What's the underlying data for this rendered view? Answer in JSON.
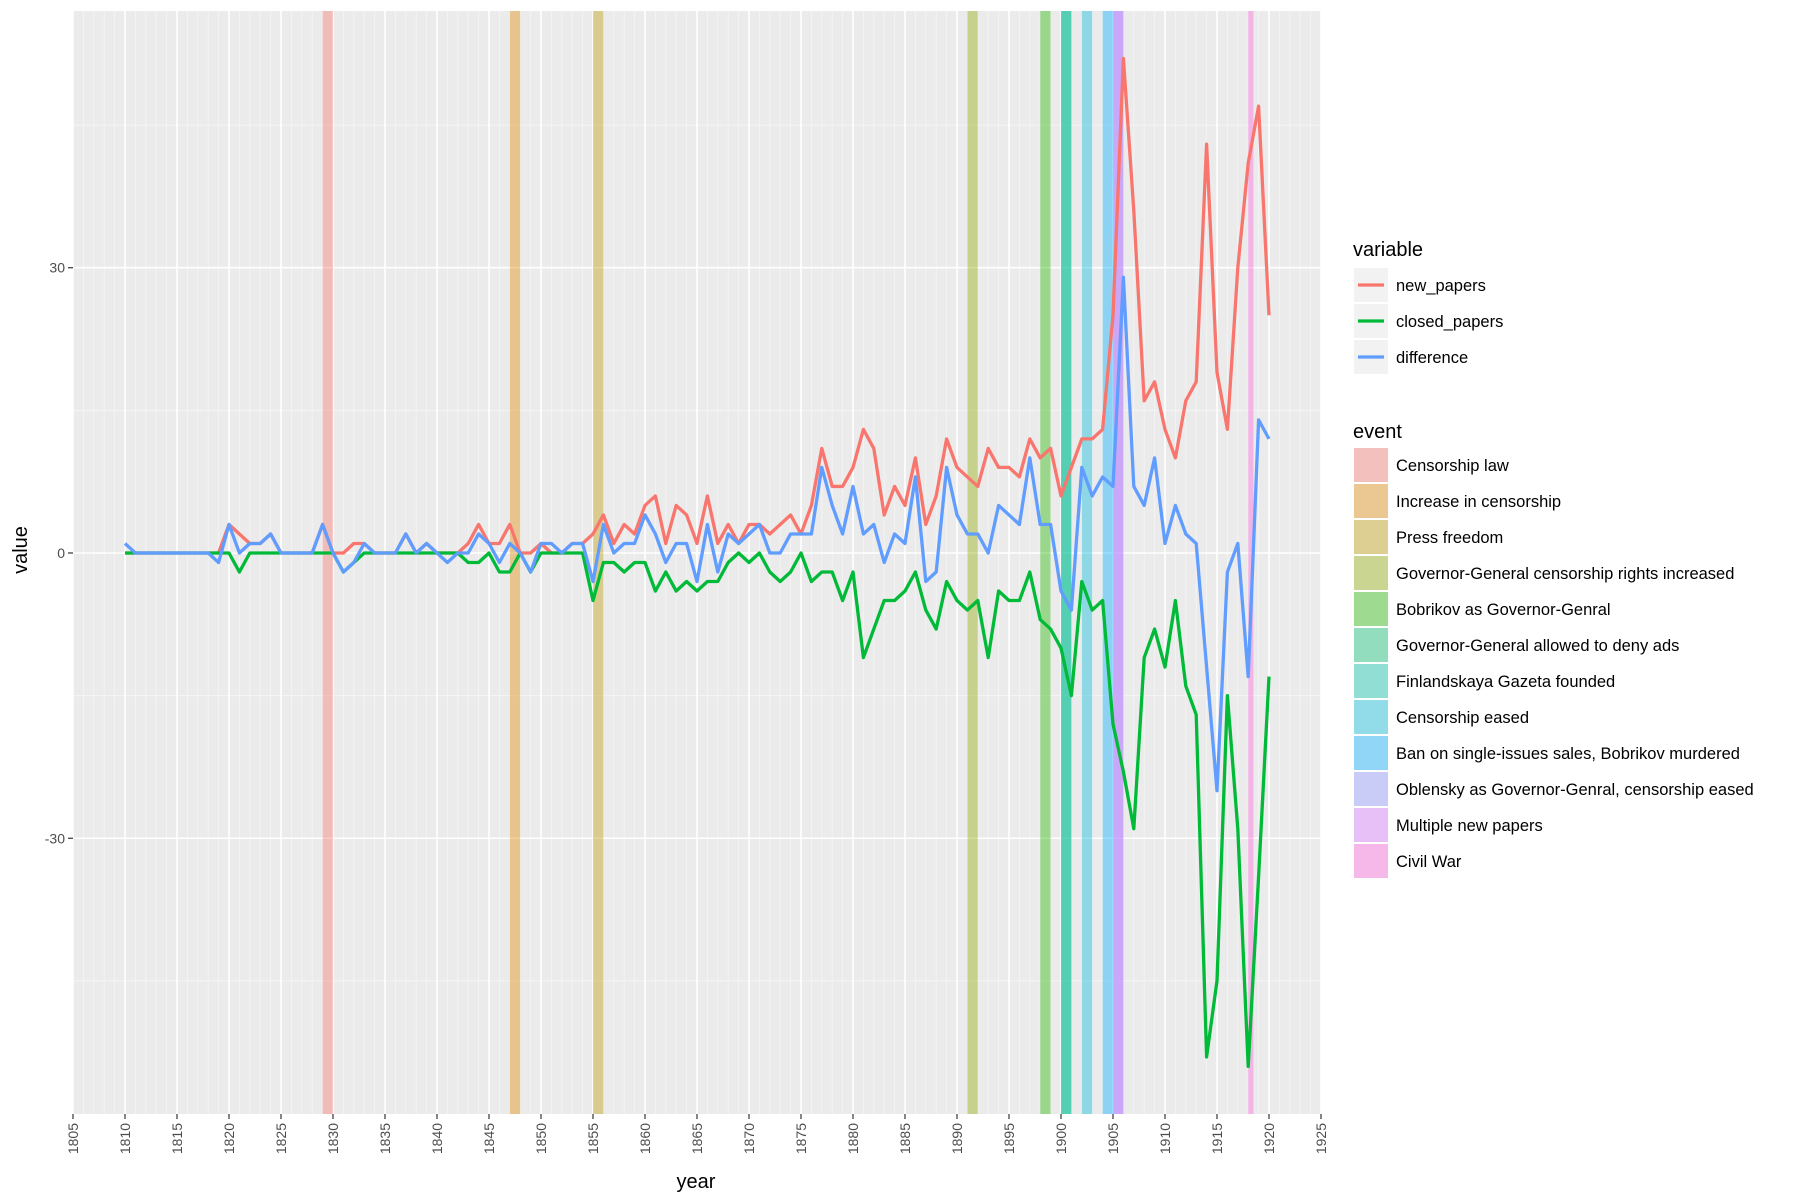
{
  "chart_data": {
    "type": "line",
    "xlabel": "year",
    "ylabel": "value",
    "xlim": [
      1805,
      1925
    ],
    "ylim": [
      -59,
      57
    ],
    "x_ticks": [
      1805,
      1810,
      1815,
      1820,
      1825,
      1830,
      1835,
      1840,
      1845,
      1850,
      1855,
      1860,
      1865,
      1870,
      1875,
      1880,
      1885,
      1890,
      1895,
      1900,
      1905,
      1910,
      1915,
      1920,
      1925
    ],
    "y_ticks": [
      30,
      0,
      -30
    ],
    "y_tick_labels": [
      "30",
      "0",
      "-30"
    ],
    "grid": true,
    "legend_position": "right",
    "x": [
      1810,
      1811,
      1812,
      1813,
      1814,
      1815,
      1816,
      1817,
      1818,
      1819,
      1820,
      1821,
      1822,
      1823,
      1824,
      1825,
      1826,
      1827,
      1828,
      1829,
      1830,
      1831,
      1832,
      1833,
      1834,
      1835,
      1836,
      1837,
      1838,
      1839,
      1840,
      1841,
      1842,
      1843,
      1844,
      1845,
      1846,
      1847,
      1848,
      1849,
      1850,
      1851,
      1852,
      1853,
      1854,
      1855,
      1856,
      1857,
      1858,
      1859,
      1860,
      1861,
      1862,
      1863,
      1864,
      1865,
      1866,
      1867,
      1868,
      1869,
      1870,
      1871,
      1872,
      1873,
      1874,
      1875,
      1876,
      1877,
      1878,
      1879,
      1880,
      1881,
      1882,
      1883,
      1884,
      1885,
      1886,
      1887,
      1888,
      1889,
      1890,
      1891,
      1892,
      1893,
      1894,
      1895,
      1896,
      1897,
      1898,
      1899,
      1900,
      1901,
      1902,
      1903,
      1904,
      1905,
      1906,
      1907,
      1908,
      1909,
      1910,
      1911,
      1912,
      1913,
      1914,
      1915,
      1916,
      1917,
      1918,
      1919,
      1920
    ],
    "variable_legend_title": "variable",
    "series": [
      {
        "name": "new_papers",
        "color": "#F8766D",
        "values": [
          0,
          0,
          0,
          0,
          0,
          0,
          0,
          0,
          0,
          0,
          3,
          2,
          1,
          1,
          2,
          0,
          0,
          0,
          0,
          3,
          0,
          0,
          1,
          1,
          0,
          0,
          0,
          2,
          0,
          1,
          0,
          0,
          0,
          1,
          3,
          1,
          1,
          3,
          0,
          0,
          1,
          0,
          0,
          1,
          1,
          2,
          4,
          1,
          3,
          2,
          5,
          6,
          1,
          5,
          4,
          1,
          6,
          1,
          3,
          1,
          3,
          3,
          2,
          3,
          4,
          2,
          5,
          11,
          7,
          7,
          9,
          13,
          11,
          4,
          7,
          5,
          10,
          3,
          6,
          12,
          9,
          8,
          7,
          11,
          9,
          9,
          8,
          12,
          10,
          11,
          6,
          9,
          12,
          12,
          13,
          25,
          52,
          36,
          16,
          18,
          13,
          10,
          16,
          18,
          43,
          19,
          13,
          30,
          41,
          47,
          25
        ]
      },
      {
        "name": "closed_papers",
        "color": "#00BA38",
        "values": [
          0,
          0,
          0,
          0,
          0,
          0,
          0,
          0,
          0,
          0,
          0,
          -2,
          0,
          0,
          0,
          0,
          0,
          0,
          0,
          0,
          0,
          -2,
          -1,
          0,
          0,
          0,
          0,
          0,
          0,
          0,
          0,
          0,
          0,
          -1,
          -1,
          0,
          -2,
          -2,
          0,
          -2,
          0,
          0,
          0,
          0,
          0,
          -5,
          -1,
          -1,
          -2,
          -1,
          -1,
          -4,
          -2,
          -4,
          -3,
          -4,
          -3,
          -3,
          -1,
          0,
          -1,
          0,
          -2,
          -3,
          -2,
          0,
          -3,
          -2,
          -2,
          -5,
          -2,
          -11,
          -8,
          -5,
          -5,
          -4,
          -2,
          -6,
          -8,
          -3,
          -5,
          -6,
          -5,
          -11,
          -4,
          -5,
          -5,
          -2,
          -7,
          -8,
          -10,
          -15,
          -3,
          -6,
          -5,
          -18,
          -23,
          -29,
          -11,
          -8,
          -12,
          -5,
          -14,
          -17,
          -53,
          -45,
          -15,
          -29,
          -54,
          -34,
          -13
        ]
      },
      {
        "name": "difference",
        "color": "#619CFF",
        "values": [
          1,
          0,
          0,
          0,
          0,
          0,
          0,
          0,
          0,
          -1,
          3,
          0,
          1,
          1,
          2,
          0,
          0,
          0,
          0,
          3,
          0,
          -2,
          -1,
          1,
          0,
          0,
          0,
          2,
          0,
          1,
          0,
          -1,
          0,
          0,
          2,
          1,
          -1,
          1,
          0,
          -2,
          1,
          1,
          0,
          1,
          1,
          -3,
          3,
          0,
          1,
          1,
          4,
          2,
          -1,
          1,
          1,
          -3,
          3,
          -2,
          2,
          1,
          2,
          3,
          0,
          0,
          2,
          2,
          2,
          9,
          5,
          2,
          7,
          2,
          3,
          -1,
          2,
          1,
          8,
          -3,
          -2,
          9,
          4,
          2,
          2,
          0,
          5,
          4,
          3,
          10,
          3,
          3,
          -4,
          -6,
          9,
          6,
          8,
          7,
          29,
          7,
          5,
          10,
          1,
          5,
          2,
          1,
          -12,
          -25,
          -2,
          1,
          -13,
          14,
          12
        ]
      }
    ],
    "event_legend_title": "event",
    "events": [
      {
        "label": "Censorship law",
        "start": 1829,
        "end": 1830,
        "color": "#F8766D"
      },
      {
        "label": "Increase in censorship",
        "start": 1847,
        "end": 1848,
        "color": "#E18A00"
      },
      {
        "label": "Press freedom",
        "start": 1855,
        "end": 1856,
        "color": "#BE9C00"
      },
      {
        "label": "Governor-General censorship rights increased",
        "start": 1891,
        "end": 1892,
        "color": "#8CAB00"
      },
      {
        "label": "Bobrikov as Governor-Genral",
        "start": 1898,
        "end": 1899,
        "color": "#24B700"
      },
      {
        "label": "Governor-General allowed to deny ads",
        "start": 1900,
        "end": 1901,
        "color": "#00BE70"
      },
      {
        "label": "Finlandskaya Gazeta founded",
        "start": 1900,
        "end": 1901,
        "color": "#00C1AB"
      },
      {
        "label": "Censorship eased",
        "start": 1902,
        "end": 1903,
        "color": "#00BBDA"
      },
      {
        "label": "Ban on single-issues sales, Bobrikov murdered",
        "start": 1904,
        "end": 1905,
        "color": "#00ACFC"
      },
      {
        "label": "Oblensky as Governor-Genral, censorship eased",
        "start": 1905,
        "end": 1906,
        "color": "#8B93FF"
      },
      {
        "label": "Multiple new papers",
        "start": 1905,
        "end": 1906,
        "color": "#D575FE"
      },
      {
        "label": "Civil War",
        "start": 1918,
        "end": 1918.5,
        "color": "#F962DD"
      }
    ]
  }
}
